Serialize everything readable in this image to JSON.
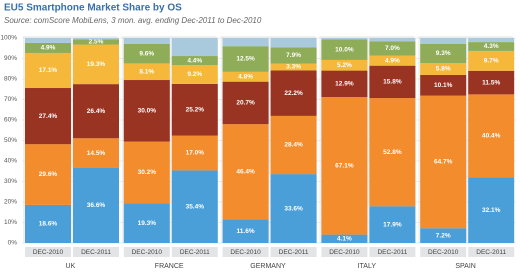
{
  "chart_data": {
    "type": "stacked-bar",
    "title": "EU5 Smartphone Market Share by OS",
    "subtitle": "Source: comScore MobiLens, 3 mon. avg. ending Dec-2011 to Dec-2010",
    "groups": [
      "UK",
      "FRANCE",
      "GERMANY",
      "ITALY",
      "SPAIN"
    ],
    "categories": [
      "DEC-2010",
      "DEC-2011",
      "DEC-2010",
      "DEC-2011",
      "DEC-2010",
      "DEC-2011",
      "DEC-2010",
      "DEC-2011",
      "DEC-2010",
      "DEC-2011"
    ],
    "ylim": [
      0,
      100
    ],
    "yticks": [
      {
        "value": 0,
        "label": "0%"
      },
      {
        "value": 10,
        "label": "10%"
      },
      {
        "value": 20,
        "label": "20%"
      },
      {
        "value": 30,
        "label": "30%"
      },
      {
        "value": 40,
        "label": "40%"
      },
      {
        "value": 50,
        "label": "50%"
      },
      {
        "value": 60,
        "label": "60%"
      },
      {
        "value": 70,
        "label": "70%"
      },
      {
        "value": 80,
        "label": "80%"
      },
      {
        "value": 90,
        "label": "90%"
      },
      {
        "value": 100,
        "label": "100%"
      }
    ],
    "grid": true,
    "series": [
      {
        "color": "#4a9fd8",
        "values": [
          18.6,
          36.6,
          19.3,
          35.4,
          11.6,
          33.6,
          4.1,
          17.9,
          7.2,
          32.1
        ],
        "value_labels": [
          "18.6%",
          "36.6%",
          "19.3%",
          "35.4%",
          "11.6%",
          "33.6%",
          "4.1%",
          "17.9%",
          "7.2%",
          "32.1%"
        ]
      },
      {
        "color": "#f28c2c",
        "values": [
          29.6,
          14.5,
          30.2,
          17.0,
          46.4,
          28.4,
          67.1,
          52.8,
          64.7,
          40.4
        ],
        "value_labels": [
          "29.6%",
          "14.5%",
          "30.2%",
          "17.0%",
          "46.4%",
          "28.4%",
          "67.1%",
          "52.8%",
          "64.7%",
          "40.4%"
        ]
      },
      {
        "color": "#993322",
        "values": [
          27.4,
          26.4,
          30.0,
          25.2,
          20.7,
          22.2,
          12.9,
          15.8,
          10.1,
          11.5
        ],
        "value_labels": [
          "27.4%",
          "26.4%",
          "30.0%",
          "25.2%",
          "20.7%",
          "22.2%",
          "12.9%",
          "15.8%",
          "10.1%",
          "11.5%"
        ]
      },
      {
        "color": "#f5b83a",
        "values": [
          17.1,
          19.3,
          8.1,
          9.2,
          4.8,
          3.3,
          5.2,
          4.9,
          5.8,
          9.7
        ],
        "value_labels": [
          "17.1%",
          "19.3%",
          "8.1%",
          "9.2%",
          "4.8%",
          "3.3%",
          "5.2%",
          "4.9%",
          "5.8%",
          "9.7%"
        ]
      },
      {
        "color": "#8fac58",
        "values": [
          4.9,
          2.5,
          9.6,
          4.4,
          12.5,
          7.9,
          10.0,
          7.0,
          9.3,
          4.3
        ],
        "value_labels": [
          "4.9%",
          "2.5%",
          "9.6%",
          "4.4%",
          "12.5%",
          "7.9%",
          "10.0%",
          "7.0%",
          "9.3%",
          "4.3%"
        ]
      },
      {
        "color": "#a9c9dc",
        "values": [
          2.4,
          0.7,
          2.8,
          8.8,
          4.0,
          4.6,
          0.7,
          1.6,
          2.9,
          2.0
        ]
      }
    ]
  }
}
